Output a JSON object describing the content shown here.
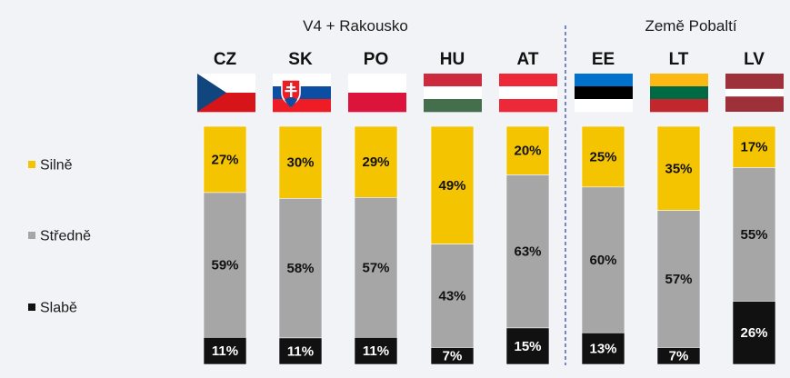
{
  "chart_data": {
    "type": "bar",
    "stacked": true,
    "normalized_percent": true,
    "group_titles": [
      "V4 + Rakousko",
      "Země Pobaltí"
    ],
    "groups": [
      {
        "title": "V4 + Rakousko",
        "categories": [
          "CZ",
          "SK",
          "PO",
          "HU",
          "AT"
        ]
      },
      {
        "title": "Země Pobaltí",
        "categories": [
          "EE",
          "LT",
          "LV"
        ]
      }
    ],
    "categories": [
      "CZ",
      "SK",
      "PO",
      "HU",
      "AT",
      "EE",
      "LT",
      "LV"
    ],
    "series": [
      {
        "name": "Silně",
        "color": "#f5c400",
        "labels": [
          "27%",
          "30%",
          "29%",
          "49%",
          "20%",
          "25%",
          "35%",
          "17%"
        ],
        "values": [
          27,
          30,
          29,
          49,
          20,
          25,
          35,
          17
        ]
      },
      {
        "name": "Středně",
        "color": "#a6a6a6",
        "labels": [
          "59%",
          "58%",
          "57%",
          "43%",
          "63%",
          "60%",
          "57%",
          "55%"
        ],
        "values": [
          59,
          58,
          57,
          43,
          63,
          60,
          57,
          55
        ]
      },
      {
        "name": "Slabě",
        "color": "#111111",
        "labels": [
          "11%",
          "11%",
          "11%",
          "7%",
          "15%",
          "13%",
          "7%",
          "26%"
        ],
        "values": [
          11,
          11,
          11,
          7,
          15,
          13,
          7,
          26
        ]
      }
    ],
    "legend_order": [
      "Silně",
      "Středně",
      "Slabě"
    ],
    "legend_position": "left",
    "flags": {
      "CZ": "czech-flag-icon",
      "SK": "slovak-flag-icon",
      "PO": "polish-flag-icon",
      "HU": "hungarian-flag-icon",
      "AT": "austrian-flag-icon",
      "EE": "estonian-flag-icon",
      "LT": "lithuanian-flag-icon",
      "LV": "latvian-flag-icon"
    },
    "group_divider": "dashed",
    "divider_color": "#2c3e9e",
    "grid": false
  }
}
